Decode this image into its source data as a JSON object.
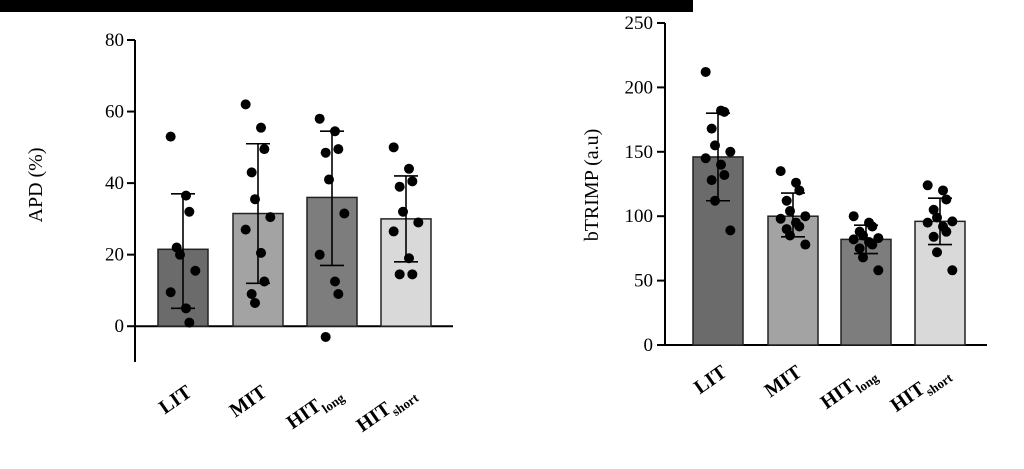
{
  "chart_data": [
    {
      "type": "bar",
      "ylabel": "APD (%)",
      "ylim": [
        -10,
        80
      ],
      "yticks": [
        0,
        20,
        40,
        60,
        80
      ],
      "categories": [
        {
          "main": "LIT",
          "sub": ""
        },
        {
          "main": "MIT",
          "sub": ""
        },
        {
          "main": "HIT",
          "sub": "long"
        },
        {
          "main": "HIT",
          "sub": "short"
        }
      ],
      "bar_colors": [
        "#6b6b6b",
        "#a3a3a3",
        "#7d7d7d",
        "#d9d9d9"
      ],
      "values": [
        21.5,
        31.5,
        36,
        30
      ],
      "error_low": [
        5,
        12,
        17,
        18
      ],
      "error_high": [
        37,
        51,
        54.5,
        42
      ],
      "points": [
        [
          53,
          36.5,
          32,
          22,
          20,
          15.5,
          9.5,
          5,
          1
        ],
        [
          62,
          55.5,
          49.5,
          43,
          35.5,
          30.5,
          27,
          20.5,
          12.5,
          9,
          6.5
        ],
        [
          58,
          54.5,
          49.5,
          48.5,
          41,
          31.5,
          20,
          12.5,
          9,
          -3
        ],
        [
          50,
          44,
          40.5,
          39,
          32,
          29,
          26.5,
          19,
          14.5,
          14.5
        ]
      ]
    },
    {
      "type": "bar",
      "ylabel": "bTRIMP (a.u)",
      "ylim": [
        0,
        250
      ],
      "yticks": [
        0,
        50,
        100,
        150,
        200,
        250
      ],
      "categories": [
        {
          "main": "LIT",
          "sub": ""
        },
        {
          "main": "MIT",
          "sub": ""
        },
        {
          "main": "HIT",
          "sub": "long"
        },
        {
          "main": "HIT",
          "sub": "short"
        }
      ],
      "bar_colors": [
        "#6b6b6b",
        "#a3a3a3",
        "#7d7d7d",
        "#d9d9d9"
      ],
      "values": [
        146,
        100,
        82,
        96
      ],
      "error_low": [
        112,
        84,
        71,
        78
      ],
      "error_high": [
        180,
        118,
        93,
        114
      ],
      "points": [
        [
          212,
          182,
          181,
          168,
          155,
          150,
          145,
          140,
          132,
          128,
          112,
          89
        ],
        [
          135,
          126,
          120,
          112,
          104,
          100,
          98,
          95,
          92,
          90,
          85,
          78
        ],
        [
          100,
          95,
          92,
          88,
          85,
          83,
          82,
          80,
          78,
          75,
          68,
          58
        ],
        [
          124,
          120,
          113,
          105,
          99,
          96,
          95,
          92,
          88,
          84,
          72,
          58
        ]
      ]
    }
  ]
}
